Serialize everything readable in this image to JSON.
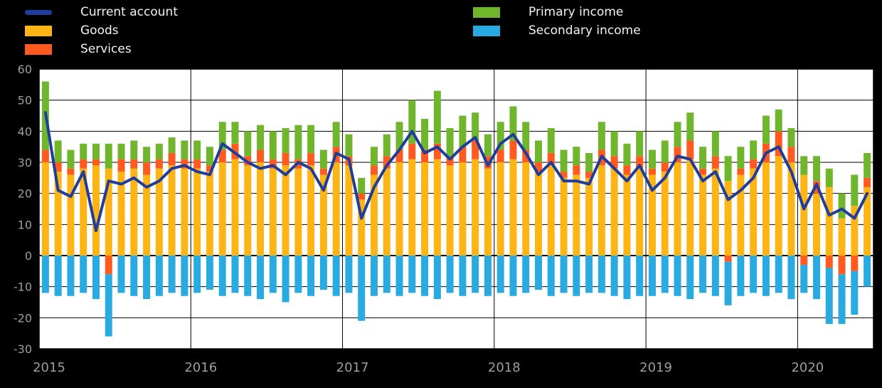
{
  "page": {
    "background": "#000000",
    "plot_background": "#ffffff",
    "grid_color": "#000000",
    "tick_text_color": "#9d9d9d"
  },
  "legend": {
    "items": [
      {
        "label": "Current account",
        "color": "#1f3d99",
        "swatch": "line"
      },
      {
        "label": "Goods",
        "color": "#fdb515",
        "swatch": "box"
      },
      {
        "label": "Services",
        "color": "#ff5a1f",
        "swatch": "box"
      },
      {
        "label": "Primary income",
        "color": "#70b62c",
        "swatch": "box"
      },
      {
        "label": "Secondary income",
        "color": "#29abe2",
        "swatch": "box"
      }
    ]
  },
  "chart_data": {
    "type": "bar",
    "stacked": true,
    "title": "",
    "xlabel": "",
    "ylabel": "",
    "ylim": [
      -30,
      60
    ],
    "yticks": [
      60,
      50,
      40,
      30,
      20,
      10,
      0,
      -10,
      -20,
      -30
    ],
    "xticks": [
      "2015",
      "2016",
      "2017",
      "2018",
      "2019",
      "2020"
    ],
    "grid": true,
    "legend_position": "top-left",
    "x": [
      "2015-01",
      "2015-02",
      "2015-03",
      "2015-04",
      "2015-05",
      "2015-06",
      "2015-07",
      "2015-08",
      "2015-09",
      "2015-10",
      "2015-11",
      "2015-12",
      "2016-01",
      "2016-02",
      "2016-03",
      "2016-04",
      "2016-05",
      "2016-06",
      "2016-07",
      "2016-08",
      "2016-09",
      "2016-10",
      "2016-11",
      "2016-12",
      "2017-01",
      "2017-02",
      "2017-03",
      "2017-04",
      "2017-05",
      "2017-06",
      "2017-07",
      "2017-08",
      "2017-09",
      "2017-10",
      "2017-11",
      "2017-12",
      "2018-01",
      "2018-02",
      "2018-03",
      "2018-04",
      "2018-05",
      "2018-06",
      "2018-07",
      "2018-08",
      "2018-09",
      "2018-10",
      "2018-11",
      "2018-12",
      "2019-01",
      "2019-02",
      "2019-03",
      "2019-04",
      "2019-05",
      "2019-06",
      "2019-07",
      "2019-08",
      "2019-09",
      "2019-10",
      "2019-11",
      "2019-12",
      "2020-01",
      "2020-02",
      "2020-03",
      "2020-04",
      "2020-05",
      "2020-06"
    ],
    "series": [
      {
        "name": "Goods",
        "type": "bar",
        "color": "#fdb515",
        "values": [
          30,
          27,
          26,
          28,
          29,
          28,
          27,
          28,
          26,
          28,
          29,
          28,
          28,
          27,
          30,
          31,
          29,
          30,
          28,
          29,
          28,
          29,
          26,
          30,
          29,
          18,
          26,
          28,
          30,
          31,
          30,
          31,
          29,
          30,
          31,
          28,
          30,
          31,
          30,
          27,
          29,
          25,
          26,
          25,
          29,
          28,
          26,
          28,
          26,
          27,
          30,
          31,
          26,
          28,
          24,
          26,
          28,
          30,
          32,
          30,
          26,
          20,
          22,
          12,
          16,
          22
        ]
      },
      {
        "name": "Services",
        "type": "bar",
        "color": "#ff5a1f",
        "values": [
          4,
          3,
          2,
          3,
          2,
          -6,
          4,
          3,
          4,
          3,
          4,
          3,
          3,
          2,
          4,
          5,
          3,
          4,
          3,
          4,
          3,
          4,
          2,
          5,
          3,
          2,
          3,
          4,
          4,
          5,
          4,
          5,
          3,
          5,
          6,
          4,
          4,
          6,
          4,
          3,
          4,
          2,
          3,
          2,
          5,
          4,
          3,
          4,
          2,
          3,
          5,
          6,
          2,
          4,
          -2,
          2,
          3,
          6,
          8,
          5,
          -3,
          4,
          -4,
          -6,
          -5,
          3
        ]
      },
      {
        "name": "Primary income",
        "type": "bar",
        "color": "#70b62c",
        "values": [
          22,
          7,
          6,
          5,
          5,
          8,
          5,
          6,
          5,
          5,
          5,
          6,
          6,
          6,
          9,
          7,
          8,
          8,
          9,
          8,
          11,
          9,
          6,
          8,
          7,
          5,
          6,
          7,
          9,
          14,
          10,
          17,
          9,
          10,
          9,
          7,
          9,
          11,
          9,
          7,
          8,
          7,
          6,
          6,
          9,
          8,
          7,
          8,
          6,
          7,
          8,
          9,
          7,
          8,
          8,
          7,
          6,
          9,
          7,
          6,
          6,
          8,
          6,
          8,
          10,
          8
        ]
      },
      {
        "name": "Secondary income",
        "type": "bar",
        "color": "#29abe2",
        "values": [
          -12,
          -13,
          -13,
          -12,
          -14,
          -20,
          -12,
          -13,
          -14,
          -13,
          -12,
          -13,
          -12,
          -11,
          -13,
          -12,
          -13,
          -14,
          -12,
          -15,
          -12,
          -13,
          -11,
          -13,
          -12,
          -21,
          -13,
          -12,
          -13,
          -12,
          -13,
          -14,
          -12,
          -13,
          -12,
          -13,
          -12,
          -13,
          -12,
          -11,
          -13,
          -12,
          -13,
          -12,
          -12,
          -13,
          -14,
          -13,
          -13,
          -12,
          -13,
          -14,
          -12,
          -13,
          -14,
          -13,
          -12,
          -13,
          -12,
          -14,
          -9,
          -14,
          -18,
          -16,
          -14,
          -10
        ]
      },
      {
        "name": "Current account",
        "type": "line",
        "color": "#1f3d99",
        "values": [
          46,
          21,
          19,
          27,
          8,
          24,
          23,
          25,
          22,
          24,
          28,
          29,
          27,
          26,
          36,
          33,
          30,
          28,
          29,
          26,
          30,
          28,
          21,
          33,
          31,
          12,
          22,
          29,
          34,
          40,
          33,
          35,
          31,
          35,
          38,
          29,
          36,
          39,
          33,
          26,
          30,
          24,
          24,
          23,
          32,
          28,
          24,
          29,
          21,
          25,
          32,
          31,
          24,
          27,
          18,
          21,
          25,
          33,
          35,
          27,
          15,
          23,
          13,
          15,
          12,
          20
        ]
      }
    ]
  }
}
